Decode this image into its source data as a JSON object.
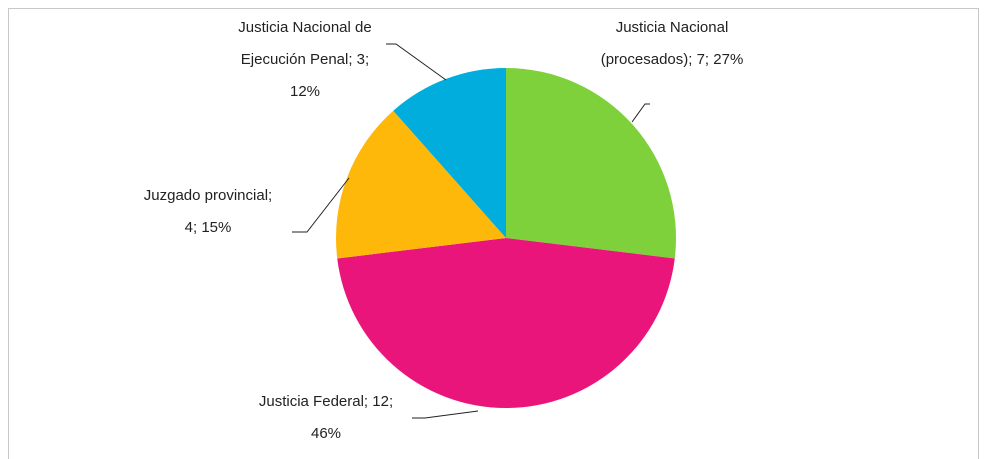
{
  "chart_data": {
    "type": "pie",
    "values": [
      7,
      12,
      4,
      3
    ],
    "value_labels": [
      "Justicia Nacional (procesados); 7; 27%",
      "Justicia Federal; 12; 46%",
      "Juzgado provincial; 4; 15%",
      "Justicia Nacional de Ejecución Penal; 3; 12%"
    ],
    "colors": [
      "#7fd13b",
      "#ea157a",
      "#feb80a",
      "#00addc"
    ]
  }
}
